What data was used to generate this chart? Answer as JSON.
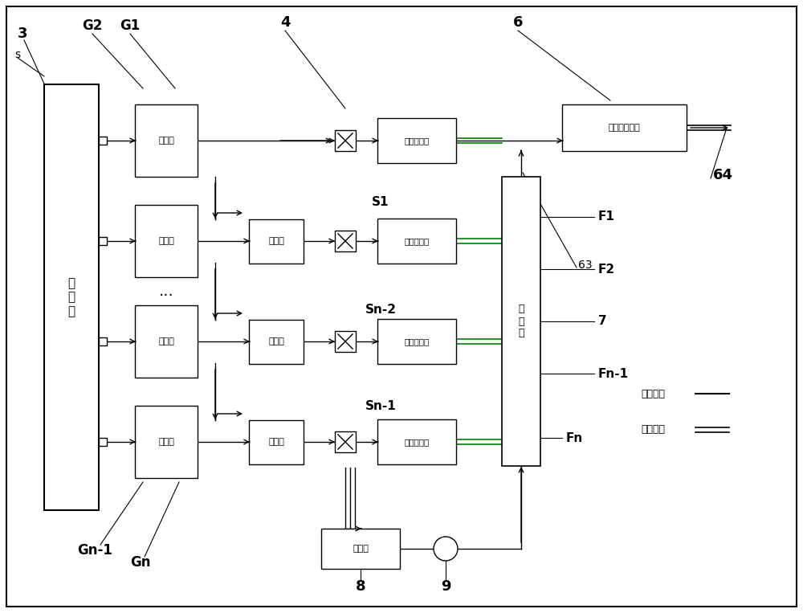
{
  "bg_color": "#ffffff",
  "line_color": "#000000",
  "green_color": "#008000",
  "labels": {
    "s": "s",
    "num3": "3",
    "G2": "G2",
    "G1": "G1",
    "num4": "4",
    "num6": "6",
    "compressor": "空\n压\n机",
    "tank": "高压羐",
    "pump": "射流泵",
    "turbine": "气轮发电机",
    "booster": "增\n压\n泵",
    "purifier": "空气净化装置",
    "residual": "余压羐",
    "S1": "S1",
    "Sn2": "Sn-2",
    "Sn1": "Sn-1",
    "F1": "F1",
    "F2": "F2",
    "num7": "7",
    "Fn1": "Fn-1",
    "Fn": "Fn",
    "Gn1": "Gn-1",
    "Gn": "Gn",
    "num8": "8",
    "num9": "9",
    "num63": "63",
    "num64": "64",
    "legend_elec": "电路连接",
    "legend_gas": "气路连接",
    "dots": "..."
  }
}
